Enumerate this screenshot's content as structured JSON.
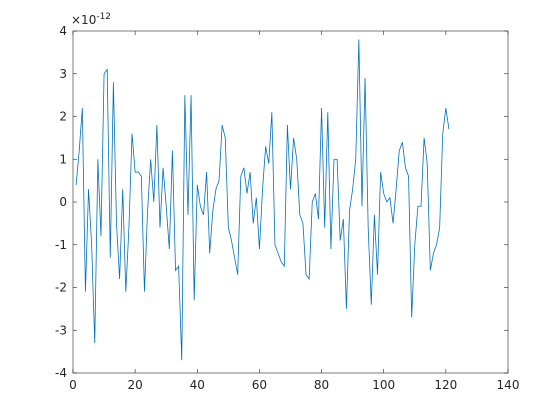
{
  "chart_data": {
    "type": "line",
    "x": [
      1,
      2,
      3,
      4,
      5,
      6,
      7,
      8,
      9,
      10,
      11,
      12,
      13,
      14,
      15,
      16,
      17,
      18,
      19,
      20,
      21,
      22,
      23,
      24,
      25,
      26,
      27,
      28,
      29,
      30,
      31,
      32,
      33,
      34,
      35,
      36,
      37,
      38,
      39,
      40,
      41,
      42,
      43,
      44,
      45,
      46,
      47,
      48,
      49,
      50,
      51,
      52,
      53,
      54,
      55,
      56,
      57,
      58,
      59,
      60,
      61,
      62,
      63,
      64,
      65,
      66,
      67,
      68,
      69,
      70,
      71,
      72,
      73,
      74,
      75,
      76,
      77,
      78,
      79,
      80,
      81,
      82,
      83,
      84,
      85,
      86,
      87,
      88,
      89,
      90,
      91,
      92,
      93,
      94,
      95,
      96,
      97,
      98,
      99,
      100,
      101,
      102,
      103,
      104,
      105,
      106,
      107,
      108,
      109,
      110,
      111,
      112,
      113,
      114,
      115,
      116,
      117,
      118,
      119,
      120,
      121
    ],
    "series": [
      {
        "color": "#0072bd",
        "values": [
          0.4,
          1.2,
          2.2,
          -2.1,
          0.3,
          -1.0,
          -3.3,
          1.0,
          -0.8,
          3.0,
          3.1,
          -1.3,
          2.8,
          -0.5,
          -1.8,
          0.3,
          -2.1,
          -0.6,
          1.6,
          0.7,
          0.7,
          0.6,
          -2.1,
          -0.2,
          1.0,
          0.0,
          1.8,
          -0.6,
          0.8,
          -0.1,
          -1.1,
          1.2,
          -1.6,
          -1.5,
          -3.7,
          2.5,
          -0.3,
          2.5,
          -2.3,
          0.4,
          -0.1,
          -0.3,
          0.7,
          -1.2,
          -0.2,
          0.3,
          0.5,
          1.8,
          1.5,
          -0.6,
          -0.9,
          -1.3,
          -1.7,
          0.6,
          0.8,
          0.2,
          0.7,
          -0.5,
          0.1,
          -1.1,
          0.3,
          1.3,
          0.9,
          2.1,
          -1.0,
          -1.2,
          -1.4,
          -1.5,
          1.8,
          0.3,
          1.5,
          1.0,
          -0.3,
          -0.5,
          -1.7,
          -1.8,
          0.0,
          0.2,
          -0.4,
          2.2,
          -0.6,
          2.1,
          -1.1,
          1.0,
          1.0,
          -0.9,
          -0.4,
          -2.5,
          -0.2,
          0.3,
          1.0,
          3.8,
          -0.1,
          2.9,
          -0.6,
          -2.4,
          -0.3,
          -1.7,
          0.7,
          0.2,
          0.0,
          0.1,
          -0.5,
          0.3,
          1.2,
          1.4,
          0.8,
          0.6,
          -2.7,
          -1.0,
          -0.1,
          -0.1,
          1.5,
          0.9,
          -1.6,
          -1.2,
          -1.0,
          -0.6,
          1.6,
          2.2,
          1.7
        ]
      }
    ],
    "xlim": [
      0,
      140
    ],
    "xticks": [
      0,
      20,
      40,
      60,
      80,
      100,
      120,
      140
    ],
    "ylim": [
      -4,
      4
    ],
    "yticks": [
      -4,
      -3,
      -2,
      -1,
      0,
      1,
      2,
      3,
      4
    ],
    "y_exponent": {
      "base": "×10",
      "power": "-12"
    }
  }
}
